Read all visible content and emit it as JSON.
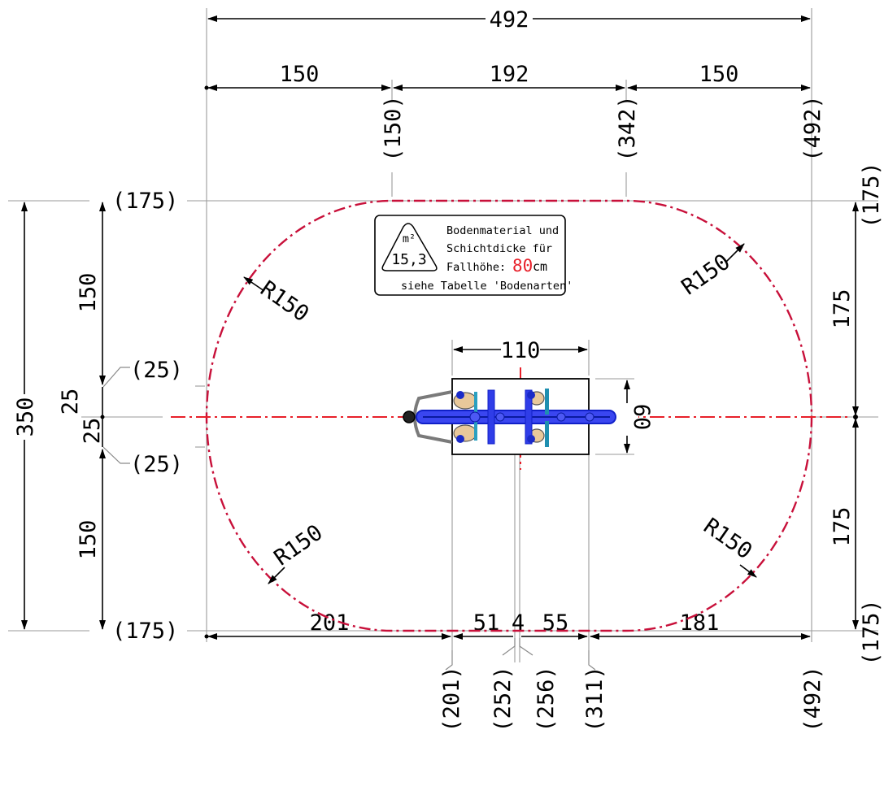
{
  "dimensions": {
    "top_total": "492",
    "top_segments": [
      "150",
      "192",
      "150"
    ],
    "top_coords": [
      "(150)",
      "(342)",
      "(492)"
    ],
    "left_total": "350",
    "left_segments": [
      "150",
      "25",
      "25",
      "150"
    ],
    "left_coords": [
      "(175)",
      "(25)",
      "(25)",
      "(175)"
    ],
    "right_segments": [
      "175",
      "175"
    ],
    "right_coords": [
      "(175)",
      "(175)"
    ],
    "bottom_segments": [
      "201",
      "51",
      "4",
      "55",
      "181"
    ],
    "bottom_coords": [
      "(201)",
      "(252)",
      "(256)",
      "(311)",
      "(492)"
    ],
    "device_width": "110",
    "device_depth": "60"
  },
  "radius_labels": [
    "R150",
    "R150",
    "R150",
    "R150"
  ],
  "info_box": {
    "unit": "m²",
    "area": "15,3",
    "line1": "Bodenmaterial und",
    "line2": "Schichtdicke für",
    "line3_label": "Fallhöhe:",
    "fall_height_value": "80",
    "fall_height_unit": "cm",
    "line4": "siehe Tabelle 'Bodenarten'"
  },
  "colors": {
    "center_line": "#e8202a",
    "safety_zone": "#c8103a",
    "device_blue": "#1f2fe0",
    "fall_height_value": "#e8202a"
  }
}
